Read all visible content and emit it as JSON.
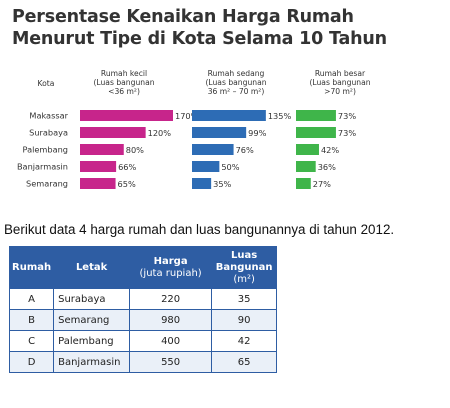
{
  "title": {
    "line1": "Persentase Kenaikan Harga Rumah",
    "line2": "Menurut Tipe di Kota Selama 10 Tahun"
  },
  "chart_data": {
    "type": "bar",
    "category_header": "Kota",
    "categories": [
      "Makassar",
      "Surabaya",
      "Palembang",
      "Banjarmasin",
      "Semarang"
    ],
    "series": [
      {
        "name": "Rumah kecil",
        "name_lines": [
          "Rumah kecil",
          "(Luas bangunan",
          "<36 m²)"
        ],
        "values": [
          170,
          120,
          80,
          66,
          65
        ],
        "labels": [
          "170%",
          "120%",
          "80%",
          "66%",
          "65%"
        ],
        "color": "#c7258b"
      },
      {
        "name": "Rumah sedang",
        "name_lines": [
          "Rumah sedang",
          "(Luas bangunan",
          "36 m² – 70 m²)"
        ],
        "values": [
          135,
          99,
          76,
          50,
          35
        ],
        "labels": [
          "135%",
          "99%",
          "76%",
          "50%",
          "35%"
        ],
        "color": "#2d6cb5"
      },
      {
        "name": "Rumah besar",
        "name_lines": [
          "Rumah besar",
          "(Luas bangunan",
          ">70 m²)"
        ],
        "values": [
          73,
          73,
          42,
          36,
          27
        ],
        "labels": [
          "73%",
          "73%",
          "42%",
          "36%",
          "27%"
        ],
        "color": "#3fb54a"
      }
    ]
  },
  "intro": "Berikut data 4 harga rumah dan luas bangunannya di tahun 2012.",
  "table": {
    "headers": [
      {
        "main": "Rumah",
        "sub": ""
      },
      {
        "main": "Letak",
        "sub": ""
      },
      {
        "main": "Harga",
        "sub": "(juta rupiah)"
      },
      {
        "main": "Luas Bangunan",
        "sub": "(m²)"
      }
    ],
    "rows": [
      [
        "A",
        "Surabaya",
        "220",
        "35"
      ],
      [
        "B",
        "Semarang",
        "980",
        "90"
      ],
      [
        "C",
        "Palembang",
        "400",
        "42"
      ],
      [
        "D",
        "Banjarmasin",
        "550",
        "65"
      ]
    ]
  }
}
